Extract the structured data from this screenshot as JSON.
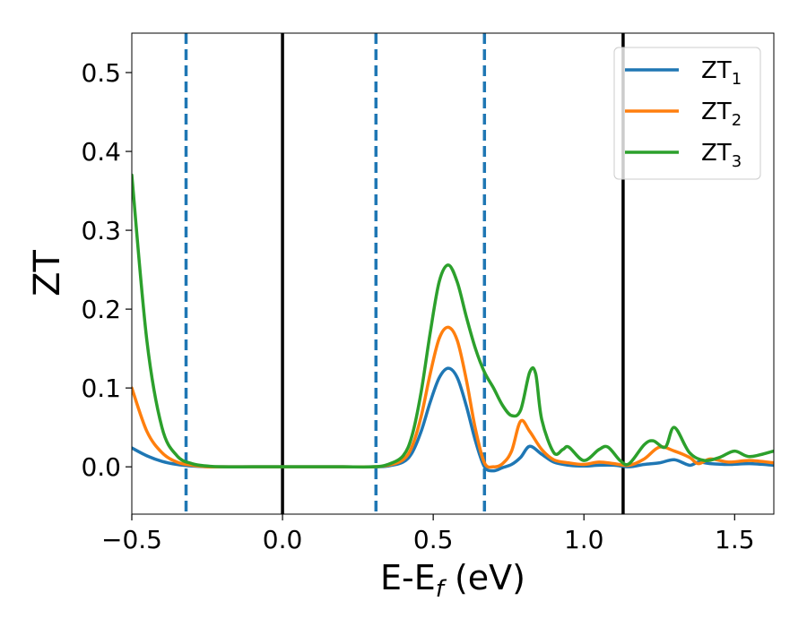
{
  "chart_data": {
    "type": "line",
    "xlabel": "E-E",
    "xlabel_sub": "f",
    "xlabel_suffix": " (eV)",
    "ylabel": "ZT",
    "xlim": [
      -0.5,
      1.63
    ],
    "ylim": [
      -0.06,
      0.55
    ],
    "xticks": [
      -0.5,
      0.0,
      0.5,
      1.0,
      1.5
    ],
    "xtick_labels": [
      "−0.5",
      "0.0",
      "0.5",
      "1.0",
      "1.5"
    ],
    "yticks": [
      0.0,
      0.1,
      0.2,
      0.3,
      0.4,
      0.5
    ],
    "ytick_labels": [
      "0.0",
      "0.1",
      "0.2",
      "0.3",
      "0.4",
      "0.5"
    ],
    "grid": false,
    "legend_position": "top-right",
    "vlines_solid": [
      0.0,
      1.13
    ],
    "vlines_dashed": [
      -0.32,
      0.31,
      0.67
    ],
    "solid_line_color": "#000000",
    "dashed_line_color": "#1f77b4",
    "series": [
      {
        "name": "ZT",
        "name_sub": "1",
        "color": "#1f77b4",
        "x": [
          -0.5,
          -0.45,
          -0.4,
          -0.35,
          -0.3,
          -0.25,
          -0.2,
          -0.1,
          0.0,
          0.1,
          0.2,
          0.3,
          0.35,
          0.4,
          0.43,
          0.46,
          0.49,
          0.52,
          0.55,
          0.58,
          0.61,
          0.64,
          0.67,
          0.7,
          0.73,
          0.76,
          0.79,
          0.82,
          0.86,
          0.9,
          0.95,
          1.0,
          1.05,
          1.1,
          1.15,
          1.2,
          1.25,
          1.3,
          1.35,
          1.38,
          1.42,
          1.48,
          1.55,
          1.63
        ],
        "y": [
          0.024,
          0.014,
          0.007,
          0.003,
          0.001,
          0.0,
          0.0,
          0.0,
          0.0,
          0.0,
          0.0,
          0.0,
          0.001,
          0.006,
          0.018,
          0.045,
          0.082,
          0.113,
          0.125,
          0.113,
          0.077,
          0.033,
          0.0,
          -0.005,
          -0.001,
          0.003,
          0.012,
          0.026,
          0.016,
          0.006,
          0.002,
          0.001,
          0.002,
          0.002,
          0.0,
          0.003,
          0.005,
          0.009,
          0.002,
          0.006,
          0.004,
          0.003,
          0.004,
          0.002
        ]
      },
      {
        "name": "ZT",
        "name_sub": "2",
        "color": "#ff7f0e",
        "x": [
          -0.5,
          -0.45,
          -0.4,
          -0.35,
          -0.3,
          -0.25,
          -0.2,
          -0.1,
          0.0,
          0.1,
          0.2,
          0.3,
          0.35,
          0.4,
          0.43,
          0.46,
          0.49,
          0.52,
          0.55,
          0.58,
          0.61,
          0.64,
          0.67,
          0.7,
          0.73,
          0.76,
          0.79,
          0.82,
          0.86,
          0.9,
          0.95,
          1.0,
          1.05,
          1.1,
          1.15,
          1.2,
          1.25,
          1.3,
          1.35,
          1.38,
          1.42,
          1.48,
          1.55,
          1.63
        ],
        "y": [
          0.1,
          0.045,
          0.018,
          0.006,
          0.002,
          0.0,
          0.0,
          0.0,
          0.0,
          0.0,
          0.0,
          0.0,
          0.002,
          0.009,
          0.026,
          0.064,
          0.118,
          0.163,
          0.177,
          0.16,
          0.11,
          0.048,
          0.005,
          0.0,
          0.004,
          0.02,
          0.058,
          0.045,
          0.022,
          0.009,
          0.005,
          0.003,
          0.006,
          0.004,
          0.002,
          0.01,
          0.025,
          0.02,
          0.012,
          0.004,
          0.01,
          0.006,
          0.008,
          0.005
        ]
      },
      {
        "name": "ZT",
        "name_sub": "3",
        "color": "#2ca02c",
        "x": [
          -0.5,
          -0.45,
          -0.4,
          -0.35,
          -0.3,
          -0.25,
          -0.2,
          -0.1,
          0.0,
          0.1,
          0.2,
          0.3,
          0.35,
          0.4,
          0.43,
          0.46,
          0.49,
          0.52,
          0.55,
          0.58,
          0.61,
          0.64,
          0.67,
          0.7,
          0.73,
          0.76,
          0.79,
          0.82,
          0.84,
          0.86,
          0.9,
          0.93,
          0.95,
          1.0,
          1.05,
          1.08,
          1.12,
          1.15,
          1.2,
          1.23,
          1.27,
          1.3,
          1.35,
          1.4,
          1.45,
          1.5,
          1.55,
          1.63
        ],
        "y": [
          0.37,
          0.16,
          0.05,
          0.014,
          0.004,
          0.001,
          0.0,
          0.0,
          0.0,
          0.0,
          0.0,
          0.0,
          0.003,
          0.014,
          0.04,
          0.095,
          0.17,
          0.235,
          0.256,
          0.234,
          0.19,
          0.15,
          0.12,
          0.1,
          0.078,
          0.065,
          0.072,
          0.12,
          0.118,
          0.06,
          0.018,
          0.022,
          0.025,
          0.008,
          0.022,
          0.025,
          0.008,
          0.004,
          0.028,
          0.033,
          0.025,
          0.05,
          0.018,
          0.008,
          0.012,
          0.02,
          0.013,
          0.02
        ]
      }
    ]
  }
}
